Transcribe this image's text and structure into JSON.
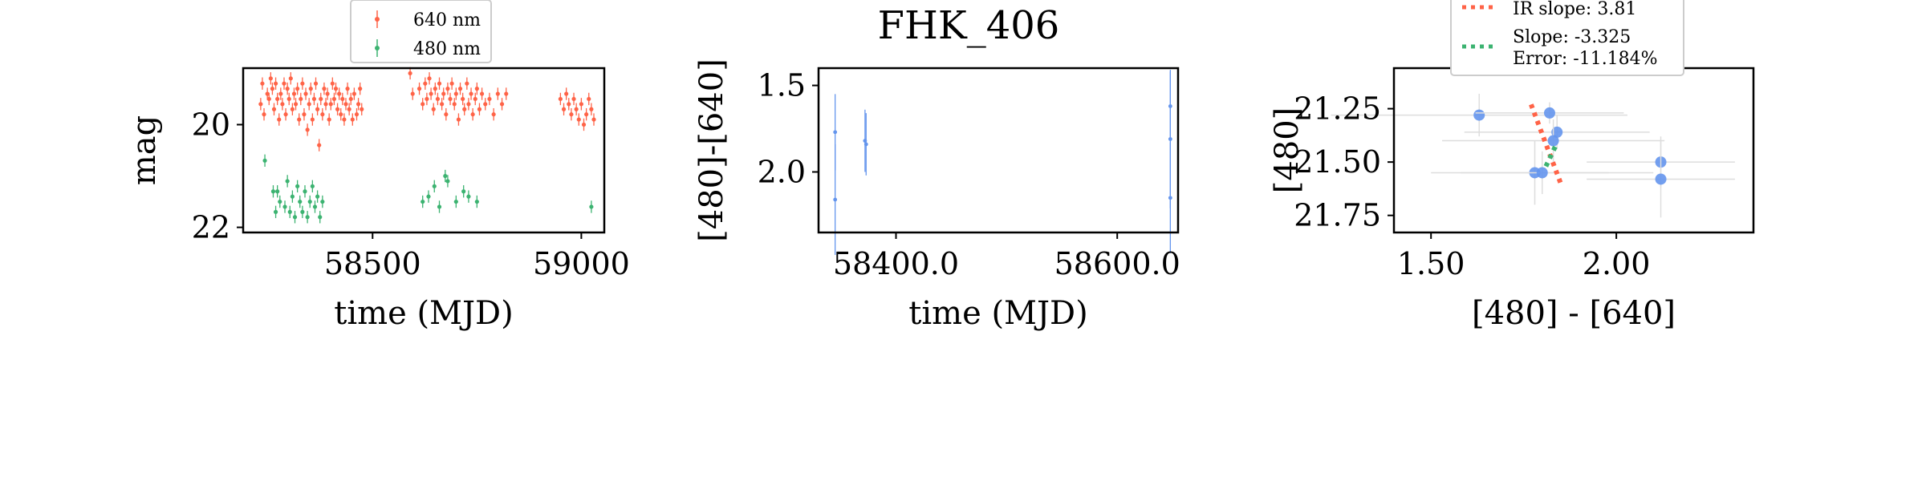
{
  "figure_title": "FHK_406",
  "colors": {
    "red": "#ff6347",
    "green": "#3cb371",
    "blue": "#6495ed",
    "errbar": "#dddddd"
  },
  "chart_data": [
    {
      "type": "scatter",
      "id": "lightcurve",
      "title": "",
      "xlabel": "time (MJD)",
      "ylabel": "mag",
      "xlim": [
        58190,
        59055
      ],
      "ylim": [
        22.1,
        18.9
      ],
      "y_inverted": true,
      "xticks": [
        58500,
        59000
      ],
      "yticks": [
        20,
        22
      ],
      "legend": {
        "placement": "top",
        "entries": [
          "640 nm",
          "480 nm"
        ]
      },
      "series": [
        {
          "name": "640 nm",
          "color": "#ff6347",
          "points": [
            [
              58232,
              19.6
            ],
            [
              58236,
              19.2
            ],
            [
              58240,
              19.8
            ],
            [
              58248,
              19.4
            ],
            [
              58252,
              19.5
            ],
            [
              58256,
              19.1
            ],
            [
              58260,
              19.3
            ],
            [
              58264,
              19.7
            ],
            [
              58268,
              19.2
            ],
            [
              58272,
              19.5
            ],
            [
              58276,
              19.9
            ],
            [
              58280,
              19.4
            ],
            [
              58284,
              19.6
            ],
            [
              58288,
              19.2
            ],
            [
              58292,
              19.8
            ],
            [
              58296,
              19.3
            ],
            [
              58300,
              19.5
            ],
            [
              58304,
              19.1
            ],
            [
              58308,
              19.7
            ],
            [
              58312,
              19.4
            ],
            [
              58316,
              19.6
            ],
            [
              58320,
              19.3
            ],
            [
              58324,
              19.9
            ],
            [
              58328,
              19.5
            ],
            [
              58332,
              19.2
            ],
            [
              58336,
              19.8
            ],
            [
              58340,
              19.4
            ],
            [
              58344,
              20.1
            ],
            [
              58348,
              19.6
            ],
            [
              58352,
              19.3
            ],
            [
              58356,
              19.9
            ],
            [
              58360,
              19.5
            ],
            [
              58364,
              19.2
            ],
            [
              58368,
              19.7
            ],
            [
              58372,
              20.4
            ],
            [
              58376,
              19.5
            ],
            [
              58380,
              19.8
            ],
            [
              58384,
              19.3
            ],
            [
              58388,
              19.6
            ],
            [
              58392,
              19.4
            ],
            [
              58396,
              19.9
            ],
            [
              58400,
              19.6
            ],
            [
              58404,
              19.2
            ],
            [
              58408,
              19.5
            ],
            [
              58412,
              19.3
            ],
            [
              58416,
              19.7
            ],
            [
              58420,
              19.4
            ],
            [
              58424,
              19.8
            ],
            [
              58428,
              19.5
            ],
            [
              58432,
              19.9
            ],
            [
              58436,
              19.6
            ],
            [
              58440,
              19.3
            ],
            [
              58444,
              19.7
            ],
            [
              58448,
              19.5
            ],
            [
              58452,
              19.9
            ],
            [
              58456,
              19.4
            ],
            [
              58462,
              19.8
            ],
            [
              58466,
              19.6
            ],
            [
              58470,
              19.3
            ],
            [
              58474,
              19.7
            ],
            [
              58590,
              19.0
            ],
            [
              58596,
              19.4
            ],
            [
              58612,
              19.3
            ],
            [
              58620,
              19.6
            ],
            [
              58626,
              19.2
            ],
            [
              58630,
              19.5
            ],
            [
              58636,
              19.1
            ],
            [
              58640,
              19.4
            ],
            [
              58646,
              19.7
            ],
            [
              58650,
              19.3
            ],
            [
              58656,
              19.5
            ],
            [
              58660,
              19.2
            ],
            [
              58666,
              19.6
            ],
            [
              58670,
              19.4
            ],
            [
              58676,
              19.8
            ],
            [
              58680,
              19.3
            ],
            [
              58686,
              19.5
            ],
            [
              58690,
              19.2
            ],
            [
              58696,
              19.6
            ],
            [
              58700,
              19.4
            ],
            [
              58706,
              19.9
            ],
            [
              58710,
              19.3
            ],
            [
              58716,
              19.5
            ],
            [
              58720,
              19.7
            ],
            [
              58726,
              19.2
            ],
            [
              58730,
              19.6
            ],
            [
              58736,
              19.4
            ],
            [
              58740,
              19.8
            ],
            [
              58746,
              19.5
            ],
            [
              58750,
              19.3
            ],
            [
              58756,
              19.7
            ],
            [
              58762,
              19.4
            ],
            [
              58770,
              19.6
            ],
            [
              58780,
              19.5
            ],
            [
              58790,
              19.8
            ],
            [
              58800,
              19.4
            ],
            [
              58810,
              19.6
            ],
            [
              58820,
              19.4
            ],
            [
              58950,
              19.5
            ],
            [
              58958,
              19.7
            ],
            [
              58964,
              19.4
            ],
            [
              58970,
              19.6
            ],
            [
              58976,
              19.8
            ],
            [
              58982,
              19.5
            ],
            [
              58988,
              19.7
            ],
            [
              58994,
              19.9
            ],
            [
              59000,
              19.6
            ],
            [
              59006,
              20.0
            ],
            [
              59012,
              19.8
            ],
            [
              59018,
              19.5
            ],
            [
              59024,
              19.7
            ],
            [
              59030,
              19.9
            ]
          ]
        },
        {
          "name": "480 nm",
          "color": "#3cb371",
          "points": [
            [
              58242,
              20.7
            ],
            [
              58262,
              21.3
            ],
            [
              58268,
              21.7
            ],
            [
              58272,
              21.3
            ],
            [
              58278,
              21.5
            ],
            [
              58290,
              21.6
            ],
            [
              58296,
              21.1
            ],
            [
              58302,
              21.7
            ],
            [
              58308,
              21.4
            ],
            [
              58314,
              21.8
            ],
            [
              58320,
              21.2
            ],
            [
              58326,
              21.5
            ],
            [
              58332,
              21.7
            ],
            [
              58338,
              21.3
            ],
            [
              58344,
              21.8
            ],
            [
              58350,
              21.5
            ],
            [
              58356,
              21.2
            ],
            [
              58362,
              21.6
            ],
            [
              58368,
              21.4
            ],
            [
              58374,
              21.8
            ],
            [
              58380,
              21.5
            ],
            [
              58620,
              21.5
            ],
            [
              58634,
              21.4
            ],
            [
              58648,
              21.2
            ],
            [
              58660,
              21.6
            ],
            [
              58674,
              21.0
            ],
            [
              58680,
              21.1
            ],
            [
              58700,
              21.5
            ],
            [
              58718,
              21.3
            ],
            [
              58730,
              21.4
            ],
            [
              58750,
              21.5
            ],
            [
              59024,
              21.6
            ]
          ]
        }
      ]
    },
    {
      "type": "scatter",
      "id": "color-curve",
      "title": "FHK_406",
      "xlabel": "time (MJD)",
      "ylabel": "[480]-[640]",
      "xlim": [
        58330,
        58655
      ],
      "ylim": [
        2.35,
        1.4
      ],
      "y_inverted": true,
      "xticks": [
        58400,
        58600
      ],
      "yticks": [
        1.5,
        2.0
      ],
      "series": [
        {
          "name": "",
          "color": "#6495ed",
          "points": [
            [
              58345,
              1.77
            ],
            [
              58345,
              2.16
            ],
            [
              58372,
              1.82
            ],
            [
              58373,
              1.84
            ],
            [
              58648,
              1.62
            ],
            [
              58648,
              1.81
            ],
            [
              58648,
              2.15
            ]
          ],
          "yerr": [
            0.22,
            0.32,
            0.18,
            0.18,
            0.2,
            0.4,
            0.32
          ]
        }
      ]
    },
    {
      "type": "scatter",
      "id": "color-magnitude",
      "title": "",
      "xlabel": "[480] - [640]",
      "ylabel": "[480]",
      "xlim": [
        1.4,
        2.37
      ],
      "ylim": [
        21.83,
        21.06
      ],
      "y_inverted": true,
      "xticks": [
        1.5,
        2.0
      ],
      "yticks": [
        21.25,
        21.5,
        21.75
      ],
      "legend": {
        "placement": "top",
        "entries": [
          "IR slope: 3.81",
          "Slope: -3.325",
          "Error: -11.184%"
        ]
      },
      "series": [
        {
          "name": "",
          "color": "#6495ed",
          "points": [
            [
              1.63,
              21.28
            ],
            [
              1.82,
              21.27
            ],
            [
              1.84,
              21.36
            ],
            [
              1.83,
              21.4
            ],
            [
              1.78,
              21.55
            ],
            [
              1.8,
              21.55
            ],
            [
              2.12,
              21.5
            ],
            [
              2.12,
              21.58
            ]
          ],
          "xerr": [
            0.4,
            0.2,
            0.25,
            0.3,
            0.2,
            0.3,
            0.2,
            0.2
          ],
          "yerr": [
            0.1,
            0.05,
            0.08,
            0.1,
            0.15,
            0.1,
            0.12,
            0.18
          ]
        }
      ],
      "lines": [
        {
          "name": "IR slope: 3.81",
          "color": "#ff6347",
          "style": "dotted",
          "x": [
            1.77,
            1.85
          ],
          "y": [
            21.23,
            21.6
          ]
        },
        {
          "name": "Slope: -3.325",
          "color": "#3cb371",
          "style": "dotted",
          "x": [
            1.81,
            1.84
          ],
          "y": [
            21.52,
            21.41
          ]
        }
      ]
    }
  ]
}
